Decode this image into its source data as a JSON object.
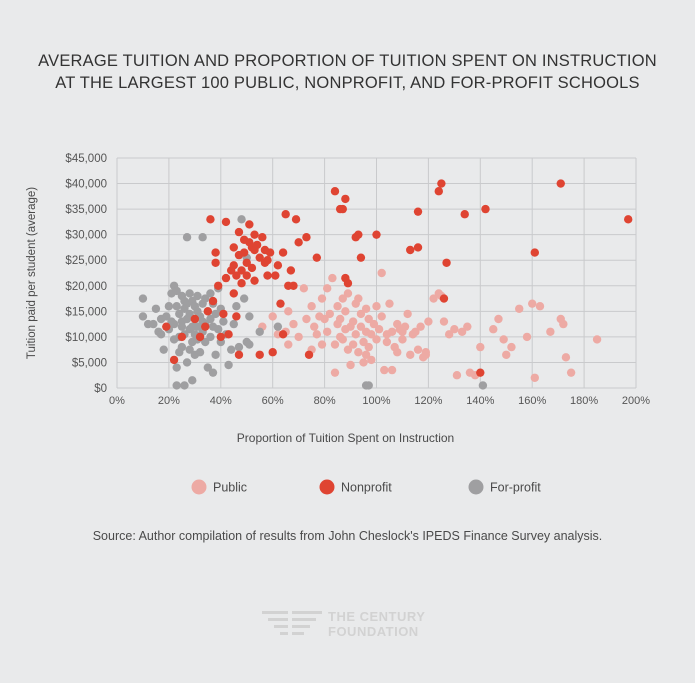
{
  "title_lines": [
    "AVERAGE TUITION AND PROPORTION OF TUITION SPENT ON INSTRUCTION",
    "AT THE LARGEST 100 PUBLIC, NONPROFIT, AND FOR-PROFIT SCHOOLS"
  ],
  "source": "Source: Author compilation of results from John Cheslock's IPEDS Finance Survey analysis.",
  "logo": {
    "line1": "THE CENTURY",
    "line2": "FOUNDATION"
  },
  "colors": {
    "background": "#e9eaeb",
    "grid": "#c9cacc",
    "public": "#edaaa4",
    "nonprofit": "#df4432",
    "forprofit": "#9f9fa1",
    "logo": "#d2d2d2"
  },
  "chart_data": {
    "type": "scatter",
    "title": "AVERAGE TUITION AND PROPORTION OF TUITION SPENT ON INSTRUCTION AT THE LARGEST 100 PUBLIC, NONPROFIT, AND FOR-PROFIT SCHOOLS",
    "xlabel": "Proportion of Tuition Spent on Instruction",
    "ylabel": "Tuition paid per student (average)",
    "xlim": [
      0,
      200
    ],
    "ylim": [
      0,
      45000
    ],
    "x_ticks": [
      "0%",
      "20%",
      "40%",
      "60%",
      "80%",
      "100%",
      "120%",
      "140%",
      "160%",
      "180%",
      "200%"
    ],
    "y_ticks": [
      "$0",
      "$5,000",
      "$10,000",
      "$15,000",
      "$20,000",
      "$25,000",
      "$30,000",
      "$35,000",
      "$40,000",
      "$45,000"
    ],
    "grid": true,
    "legend_position": "bottom",
    "series": [
      {
        "name": "Public",
        "color": "#edaaa4",
        "points": [
          [
            56,
            12000
          ],
          [
            60,
            14000
          ],
          [
            62,
            10500
          ],
          [
            65,
            11000
          ],
          [
            66,
            8500
          ],
          [
            66,
            15000
          ],
          [
            68,
            12500
          ],
          [
            70,
            10000
          ],
          [
            72,
            19500
          ],
          [
            73,
            13500
          ],
          [
            75,
            7500
          ],
          [
            75,
            16000
          ],
          [
            76,
            12000
          ],
          [
            77,
            10500
          ],
          [
            78,
            14000
          ],
          [
            79,
            17500
          ],
          [
            79,
            8500
          ],
          [
            80,
            13500
          ],
          [
            81,
            11000
          ],
          [
            81,
            19500
          ],
          [
            82,
            14500
          ],
          [
            83,
            21500
          ],
          [
            84,
            3000
          ],
          [
            84,
            8500
          ],
          [
            85,
            16000
          ],
          [
            85,
            12500
          ],
          [
            86,
            10000
          ],
          [
            86,
            13500
          ],
          [
            87,
            9500
          ],
          [
            87,
            17500
          ],
          [
            88,
            15000
          ],
          [
            88,
            11500
          ],
          [
            89,
            7500
          ],
          [
            89,
            18500
          ],
          [
            90,
            12000
          ],
          [
            90,
            4500
          ],
          [
            91,
            13000
          ],
          [
            91,
            8500
          ],
          [
            92,
            16500
          ],
          [
            92,
            10500
          ],
          [
            93,
            17500
          ],
          [
            93,
            7000
          ],
          [
            94,
            14500
          ],
          [
            94,
            12000
          ],
          [
            95,
            9000
          ],
          [
            95,
            5000
          ],
          [
            96,
            15500
          ],
          [
            96,
            11000
          ],
          [
            97,
            8000
          ],
          [
            97,
            13500
          ],
          [
            98,
            10500
          ],
          [
            99,
            12500
          ],
          [
            100,
            9500
          ],
          [
            100,
            16000
          ],
          [
            101,
            11500
          ],
          [
            102,
            22500
          ],
          [
            102,
            14000
          ],
          [
            103,
            3500
          ],
          [
            104,
            10500
          ],
          [
            105,
            16500
          ],
          [
            106,
            11000
          ],
          [
            106,
            3500
          ],
          [
            107,
            8000
          ],
          [
            108,
            12500
          ],
          [
            108,
            7000
          ],
          [
            109,
            11500
          ],
          [
            110,
            9500
          ],
          [
            111,
            12000
          ],
          [
            112,
            14500
          ],
          [
            113,
            6500
          ],
          [
            114,
            10500
          ],
          [
            115,
            11000
          ],
          [
            116,
            7500
          ],
          [
            117,
            12000
          ],
          [
            118,
            6000
          ],
          [
            119,
            7000
          ],
          [
            120,
            13000
          ],
          [
            122,
            17500
          ],
          [
            124,
            18500
          ],
          [
            126,
            13000
          ],
          [
            128,
            10500
          ],
          [
            130,
            11500
          ],
          [
            131,
            2500
          ],
          [
            133,
            11000
          ],
          [
            135,
            12000
          ],
          [
            136,
            3000
          ],
          [
            138,
            2500
          ],
          [
            140,
            8000
          ],
          [
            145,
            11500
          ],
          [
            147,
            13500
          ],
          [
            149,
            9500
          ],
          [
            150,
            6500
          ],
          [
            152,
            8000
          ],
          [
            155,
            15500
          ],
          [
            158,
            10000
          ],
          [
            160,
            16500
          ],
          [
            161,
            2000
          ],
          [
            163,
            16000
          ],
          [
            167,
            11000
          ],
          [
            171,
            13500
          ],
          [
            172,
            12500
          ],
          [
            173,
            6000
          ],
          [
            175,
            3000
          ],
          [
            185,
            9500
          ],
          [
            125,
            18000
          ],
          [
            119,
            6500
          ],
          [
            110,
            11000
          ],
          [
            104,
            9000
          ],
          [
            98,
            5500
          ],
          [
            96,
            6500
          ]
        ]
      },
      {
        "name": "Nonprofit",
        "color": "#df4432",
        "points": [
          [
            19,
            12000
          ],
          [
            22,
            5500
          ],
          [
            25,
            10000
          ],
          [
            30,
            13500
          ],
          [
            32,
            10000
          ],
          [
            34,
            12000
          ],
          [
            35,
            15000
          ],
          [
            36,
            33000
          ],
          [
            37,
            17000
          ],
          [
            38,
            24500
          ],
          [
            38,
            26500
          ],
          [
            39,
            20000
          ],
          [
            40,
            10000
          ],
          [
            41,
            14500
          ],
          [
            42,
            21500
          ],
          [
            42,
            32500
          ],
          [
            43,
            10500
          ],
          [
            44,
            23000
          ],
          [
            45,
            24000
          ],
          [
            45,
            18500
          ],
          [
            46,
            22000
          ],
          [
            46,
            14000
          ],
          [
            47,
            6500
          ],
          [
            47,
            30500
          ],
          [
            48,
            23000
          ],
          [
            48,
            20500
          ],
          [
            49,
            29000
          ],
          [
            49,
            26500
          ],
          [
            50,
            24500
          ],
          [
            50,
            22000
          ],
          [
            51,
            28500
          ],
          [
            51,
            32000
          ],
          [
            52,
            27500
          ],
          [
            52,
            23500
          ],
          [
            53,
            27000
          ],
          [
            53,
            21000
          ],
          [
            54,
            28000
          ],
          [
            55,
            25500
          ],
          [
            55,
            6500
          ],
          [
            56,
            29500
          ],
          [
            57,
            27000
          ],
          [
            57,
            24500
          ],
          [
            58,
            25000
          ],
          [
            59,
            26500
          ],
          [
            60,
            7000
          ],
          [
            61,
            22000
          ],
          [
            62,
            24000
          ],
          [
            63,
            16500
          ],
          [
            64,
            10500
          ],
          [
            64,
            26500
          ],
          [
            65,
            34000
          ],
          [
            66,
            20000
          ],
          [
            67,
            23000
          ],
          [
            68,
            20000
          ],
          [
            69,
            33000
          ],
          [
            70,
            28500
          ],
          [
            73,
            29500
          ],
          [
            74,
            6500
          ],
          [
            77,
            25500
          ],
          [
            84,
            38500
          ],
          [
            86,
            35000
          ],
          [
            87,
            35000
          ],
          [
            88,
            37000
          ],
          [
            88,
            21500
          ],
          [
            89,
            20500
          ],
          [
            92,
            29500
          ],
          [
            93,
            30000
          ],
          [
            94,
            25500
          ],
          [
            100,
            30000
          ],
          [
            113,
            27000
          ],
          [
            116,
            34500
          ],
          [
            116,
            27500
          ],
          [
            124,
            38500
          ],
          [
            125,
            40000
          ],
          [
            126,
            17500
          ],
          [
            127,
            24500
          ],
          [
            134,
            34000
          ],
          [
            140,
            3000
          ],
          [
            142,
            35000
          ],
          [
            161,
            26500
          ],
          [
            171,
            40000
          ],
          [
            197,
            33000
          ],
          [
            45,
            27500
          ],
          [
            47,
            26000
          ],
          [
            53,
            30000
          ],
          [
            58,
            22000
          ]
        ]
      },
      {
        "name": "For-profit",
        "color": "#9f9fa1",
        "points": [
          [
            10,
            17500
          ],
          [
            10,
            14000
          ],
          [
            12,
            12500
          ],
          [
            14,
            12500
          ],
          [
            15,
            15500
          ],
          [
            16,
            11000
          ],
          [
            17,
            13500
          ],
          [
            17,
            10500
          ],
          [
            18,
            7500
          ],
          [
            19,
            14000
          ],
          [
            20,
            16000
          ],
          [
            20,
            11500
          ],
          [
            21,
            13000
          ],
          [
            21,
            18500
          ],
          [
            22,
            9500
          ],
          [
            22,
            20000
          ],
          [
            22,
            12500
          ],
          [
            23,
            19000
          ],
          [
            23,
            16000
          ],
          [
            23,
            4000
          ],
          [
            24,
            14500
          ],
          [
            24,
            10000
          ],
          [
            24,
            7000
          ],
          [
            25,
            18000
          ],
          [
            25,
            13000
          ],
          [
            25,
            12000
          ],
          [
            25,
            8000
          ],
          [
            26,
            17000
          ],
          [
            26,
            15500
          ],
          [
            26,
            10500
          ],
          [
            27,
            16500
          ],
          [
            27,
            29500
          ],
          [
            27,
            13500
          ],
          [
            27,
            5000
          ],
          [
            28,
            18500
          ],
          [
            28,
            14500
          ],
          [
            28,
            11500
          ],
          [
            28,
            7500
          ],
          [
            29,
            17000
          ],
          [
            29,
            12000
          ],
          [
            29,
            9000
          ],
          [
            30,
            16000
          ],
          [
            30,
            13500
          ],
          [
            30,
            10500
          ],
          [
            30,
            6500
          ],
          [
            31,
            18000
          ],
          [
            31,
            15000
          ],
          [
            31,
            12000
          ],
          [
            31,
            9500
          ],
          [
            32,
            14000
          ],
          [
            32,
            7000
          ],
          [
            33,
            16500
          ],
          [
            33,
            13000
          ],
          [
            33,
            11000
          ],
          [
            33,
            29500
          ],
          [
            34,
            17500
          ],
          [
            34,
            12500
          ],
          [
            34,
            9000
          ],
          [
            35,
            15000
          ],
          [
            35,
            4000
          ],
          [
            36,
            18500
          ],
          [
            36,
            13500
          ],
          [
            36,
            10000
          ],
          [
            37,
            16500
          ],
          [
            37,
            12000
          ],
          [
            38,
            14500
          ],
          [
            38,
            6500
          ],
          [
            39,
            19500
          ],
          [
            39,
            11500
          ],
          [
            40,
            15500
          ],
          [
            40,
            9000
          ],
          [
            41,
            13000
          ],
          [
            42,
            10500
          ],
          [
            43,
            4500
          ],
          [
            44,
            7500
          ],
          [
            45,
            12500
          ],
          [
            46,
            16000
          ],
          [
            47,
            8000
          ],
          [
            48,
            33000
          ],
          [
            49,
            17500
          ],
          [
            50,
            25500
          ],
          [
            50,
            9000
          ],
          [
            51,
            8500
          ],
          [
            51,
            14000
          ],
          [
            55,
            11000
          ],
          [
            62,
            12000
          ],
          [
            96,
            500
          ],
          [
            97,
            500
          ],
          [
            141,
            500
          ],
          [
            23,
            500
          ],
          [
            26,
            500
          ],
          [
            29,
            1500
          ],
          [
            37,
            3000
          ]
        ]
      }
    ]
  }
}
